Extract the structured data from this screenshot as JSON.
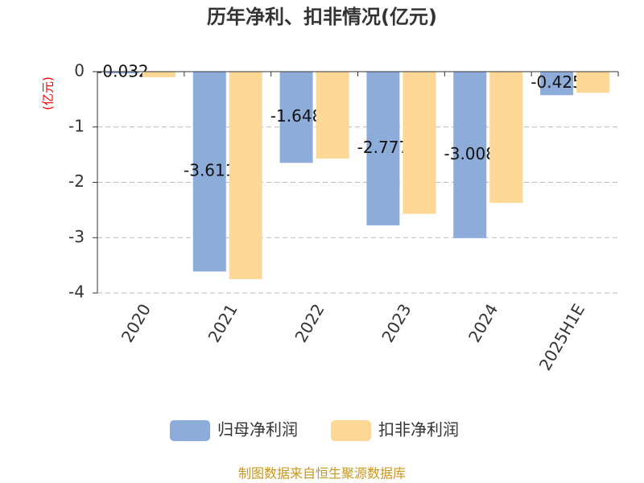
{
  "chart_data": {
    "type": "bar",
    "title": "历年净利、扣非情况(亿元)",
    "y_label": "(亿元)",
    "categories": [
      "2020",
      "2021",
      "2022",
      "2023",
      "2024",
      "2025H1E"
    ],
    "series": [
      {
        "name": "归母净利润",
        "color": "#8eacd9",
        "values": [
          -0.032,
          -3.611,
          -1.648,
          -2.777,
          -3.008,
          -0.425
        ],
        "labels": true
      },
      {
        "name": "扣非净利润",
        "color": "#fdd796",
        "values": [
          -0.1,
          -3.75,
          -1.57,
          -2.57,
          -2.37,
          -0.38
        ],
        "labels": false
      }
    ],
    "ylim": [
      -4,
      0
    ],
    "yticks": [
      0,
      -1,
      -2,
      -3,
      -4
    ],
    "grid": true,
    "source": "制图数据来自恒生聚源数据库"
  }
}
